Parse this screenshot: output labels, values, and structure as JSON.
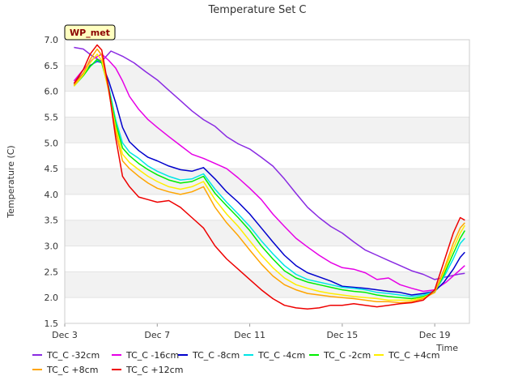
{
  "chart_data": {
    "type": "line",
    "title": "Temperature Set C",
    "xlabel": "Time",
    "ylabel": "Temperature (C)",
    "badge": "WP_met",
    "xlim": [
      3,
      20.5
    ],
    "ylim": [
      1.5,
      7.0
    ],
    "x_ticks": [
      3,
      7,
      11,
      15,
      19
    ],
    "x_tick_labels": [
      "Dec 3",
      "Dec 7",
      "Dec 11",
      "Dec 15",
      "Dec 19"
    ],
    "y_ticks": [
      1.5,
      2.0,
      2.5,
      3.0,
      3.5,
      4.0,
      4.5,
      5.0,
      5.5,
      6.0,
      6.5,
      7.0
    ],
    "y_tick_labels": [
      "1.5",
      "2.0",
      "2.5",
      "3.0",
      "3.5",
      "4.0",
      "4.5",
      "5.0",
      "5.5",
      "6.0",
      "6.5",
      "7.0"
    ],
    "grid": "horizontal alternating bands",
    "legend_position": "bottom",
    "series": [
      {
        "name": "TC_C -32cm",
        "color": "#8a2be2",
        "x": [
          3.4,
          3.8,
          4.2,
          4.6,
          5.0,
          5.5,
          6.0,
          6.5,
          7.0,
          7.5,
          8.0,
          8.5,
          9.0,
          9.5,
          10.0,
          10.5,
          11.0,
          11.5,
          12.0,
          12.5,
          13.0,
          13.5,
          14.0,
          14.5,
          15.0,
          15.5,
          16.0,
          16.5,
          17.0,
          17.5,
          18.0,
          18.5,
          19.0,
          19.5,
          20.0,
          20.3
        ],
        "y": [
          6.85,
          6.82,
          6.68,
          6.58,
          6.78,
          6.68,
          6.55,
          6.38,
          6.22,
          6.02,
          5.82,
          5.62,
          5.45,
          5.32,
          5.12,
          4.98,
          4.88,
          4.72,
          4.55,
          4.3,
          4.02,
          3.75,
          3.55,
          3.38,
          3.25,
          3.08,
          2.92,
          2.82,
          2.72,
          2.62,
          2.52,
          2.45,
          2.35,
          2.4,
          2.45,
          2.47
        ]
      },
      {
        "name": "TC_C -16cm",
        "color": "#e600e6",
        "x": [
          3.4,
          3.8,
          4.2,
          4.6,
          4.9,
          5.2,
          5.5,
          5.8,
          6.2,
          6.6,
          7.0,
          7.5,
          8.0,
          8.5,
          9.0,
          9.5,
          10.0,
          10.5,
          11.0,
          11.5,
          12.0,
          12.5,
          13.0,
          13.5,
          14.0,
          14.5,
          15.0,
          15.5,
          16.0,
          16.5,
          17.0,
          17.5,
          18.0,
          18.5,
          19.0,
          19.5,
          20.0,
          20.3
        ],
        "y": [
          6.2,
          6.42,
          6.62,
          6.72,
          6.6,
          6.45,
          6.2,
          5.9,
          5.65,
          5.45,
          5.3,
          5.12,
          4.95,
          4.78,
          4.7,
          4.6,
          4.5,
          4.32,
          4.12,
          3.9,
          3.62,
          3.38,
          3.15,
          2.98,
          2.82,
          2.68,
          2.58,
          2.55,
          2.48,
          2.35,
          2.38,
          2.25,
          2.18,
          2.12,
          2.15,
          2.3,
          2.5,
          2.62
        ]
      },
      {
        "name": "TC_C -8cm",
        "color": "#0000cd",
        "x": [
          3.4,
          3.8,
          4.1,
          4.4,
          4.6,
          4.9,
          5.2,
          5.5,
          5.8,
          6.2,
          6.6,
          7.0,
          7.5,
          8.0,
          8.5,
          9.0,
          9.5,
          10.0,
          10.5,
          11.0,
          11.5,
          12.0,
          12.5,
          13.0,
          13.5,
          14.0,
          14.5,
          15.0,
          15.5,
          16.0,
          16.5,
          17.0,
          17.5,
          18.0,
          18.5,
          19.0,
          19.4,
          19.8,
          20.1,
          20.3
        ],
        "y": [
          6.15,
          6.35,
          6.5,
          6.58,
          6.55,
          6.2,
          5.78,
          5.3,
          5.02,
          4.85,
          4.72,
          4.65,
          4.55,
          4.48,
          4.45,
          4.52,
          4.3,
          4.05,
          3.85,
          3.62,
          3.35,
          3.08,
          2.82,
          2.62,
          2.48,
          2.4,
          2.32,
          2.22,
          2.2,
          2.18,
          2.15,
          2.12,
          2.1,
          2.05,
          2.08,
          2.12,
          2.3,
          2.55,
          2.78,
          2.88
        ]
      },
      {
        "name": "TC_C -4cm",
        "color": "#00e5e5",
        "x": [
          3.4,
          3.8,
          4.1,
          4.4,
          4.6,
          4.9,
          5.2,
          5.5,
          5.8,
          6.2,
          6.6,
          7.0,
          7.5,
          8.0,
          8.5,
          9.0,
          9.5,
          10.0,
          10.5,
          11.0,
          11.5,
          12.0,
          12.5,
          13.0,
          13.5,
          14.0,
          14.5,
          15.0,
          15.5,
          16.0,
          16.5,
          17.0,
          17.5,
          18.0,
          18.5,
          19.0,
          19.4,
          19.8,
          20.1,
          20.3
        ],
        "y": [
          6.12,
          6.32,
          6.48,
          6.6,
          6.55,
          6.1,
          5.45,
          5.0,
          4.82,
          4.7,
          4.55,
          4.45,
          4.35,
          4.28,
          4.3,
          4.4,
          4.1,
          3.85,
          3.62,
          3.38,
          3.1,
          2.85,
          2.62,
          2.45,
          2.35,
          2.3,
          2.25,
          2.2,
          2.18,
          2.15,
          2.1,
          2.08,
          2.05,
          2.02,
          2.05,
          2.12,
          2.4,
          2.75,
          3.05,
          3.15
        ]
      },
      {
        "name": "TC_C -2cm",
        "color": "#00ee00",
        "x": [
          3.4,
          3.8,
          4.1,
          4.4,
          4.6,
          4.9,
          5.2,
          5.5,
          5.8,
          6.2,
          6.6,
          7.0,
          7.5,
          8.0,
          8.5,
          9.0,
          9.5,
          10.0,
          10.5,
          11.0,
          11.5,
          12.0,
          12.5,
          13.0,
          13.5,
          14.0,
          14.5,
          15.0,
          15.5,
          16.0,
          16.5,
          17.0,
          17.5,
          18.0,
          18.5,
          19.0,
          19.4,
          19.8,
          20.1,
          20.3
        ],
        "y": [
          6.1,
          6.3,
          6.48,
          6.62,
          6.55,
          6.05,
          5.38,
          4.9,
          4.75,
          4.6,
          4.48,
          4.38,
          4.28,
          4.22,
          4.25,
          4.35,
          4.02,
          3.78,
          3.55,
          3.3,
          3.0,
          2.75,
          2.52,
          2.38,
          2.3,
          2.25,
          2.2,
          2.15,
          2.12,
          2.1,
          2.05,
          2.02,
          2.0,
          1.98,
          2.02,
          2.1,
          2.45,
          2.85,
          3.15,
          3.3
        ]
      },
      {
        "name": "TC_C +4cm",
        "color": "#ffee00",
        "x": [
          3.4,
          3.8,
          4.1,
          4.4,
          4.6,
          4.9,
          5.2,
          5.5,
          5.8,
          6.2,
          6.6,
          7.0,
          7.5,
          8.0,
          8.5,
          9.0,
          9.5,
          10.0,
          10.5,
          11.0,
          11.5,
          12.0,
          12.5,
          13.0,
          13.5,
          14.0,
          14.5,
          15.0,
          15.5,
          16.0,
          16.5,
          17.0,
          17.5,
          18.0,
          18.5,
          19.0,
          19.4,
          19.8,
          20.1,
          20.3
        ],
        "y": [
          6.1,
          6.32,
          6.55,
          6.72,
          6.6,
          6.0,
          5.3,
          4.78,
          4.62,
          4.48,
          4.35,
          4.25,
          4.15,
          4.1,
          4.15,
          4.25,
          3.9,
          3.62,
          3.38,
          3.1,
          2.82,
          2.58,
          2.38,
          2.25,
          2.18,
          2.12,
          2.08,
          2.05,
          2.02,
          2.0,
          1.98,
          1.95,
          1.95,
          1.95,
          2.0,
          2.1,
          2.5,
          2.95,
          3.25,
          3.4
        ]
      },
      {
        "name": "TC_C +8cm",
        "color": "#ffa500",
        "x": [
          3.4,
          3.8,
          4.1,
          4.4,
          4.6,
          4.9,
          5.2,
          5.5,
          5.8,
          6.2,
          6.6,
          7.0,
          7.5,
          8.0,
          8.5,
          9.0,
          9.5,
          10.0,
          10.5,
          11.0,
          11.5,
          12.0,
          12.5,
          13.0,
          13.5,
          14.0,
          14.5,
          15.0,
          15.5,
          16.0,
          16.5,
          17.0,
          17.5,
          18.0,
          18.5,
          19.0,
          19.4,
          19.8,
          20.1,
          20.3
        ],
        "y": [
          6.12,
          6.35,
          6.62,
          6.82,
          6.7,
          6.02,
          5.22,
          4.65,
          4.5,
          4.35,
          4.22,
          4.12,
          4.05,
          4.0,
          4.05,
          4.15,
          3.75,
          3.45,
          3.2,
          2.92,
          2.65,
          2.42,
          2.25,
          2.15,
          2.08,
          2.05,
          2.02,
          2.0,
          1.98,
          1.95,
          1.92,
          1.92,
          1.9,
          1.92,
          1.98,
          2.1,
          2.55,
          3.05,
          3.35,
          3.45
        ]
      },
      {
        "name": "TC_C +12cm",
        "color": "#ee0000",
        "x": [
          3.4,
          3.8,
          4.1,
          4.4,
          4.6,
          4.9,
          5.2,
          5.5,
          5.8,
          6.2,
          6.6,
          7.0,
          7.5,
          8.0,
          8.5,
          9.0,
          9.5,
          10.0,
          10.5,
          11.0,
          11.5,
          12.0,
          12.5,
          13.0,
          13.5,
          14.0,
          14.5,
          15.0,
          15.5,
          16.0,
          16.5,
          17.0,
          17.5,
          18.0,
          18.5,
          19.0,
          19.4,
          19.8,
          20.1,
          20.3
        ],
        "y": [
          6.15,
          6.42,
          6.72,
          6.9,
          6.8,
          6.05,
          5.1,
          4.35,
          4.15,
          3.95,
          3.9,
          3.85,
          3.88,
          3.75,
          3.55,
          3.35,
          3.0,
          2.75,
          2.55,
          2.35,
          2.15,
          1.98,
          1.85,
          1.8,
          1.78,
          1.8,
          1.85,
          1.85,
          1.88,
          1.85,
          1.82,
          1.85,
          1.88,
          1.9,
          1.95,
          2.15,
          2.7,
          3.25,
          3.55,
          3.5
        ]
      }
    ]
  }
}
